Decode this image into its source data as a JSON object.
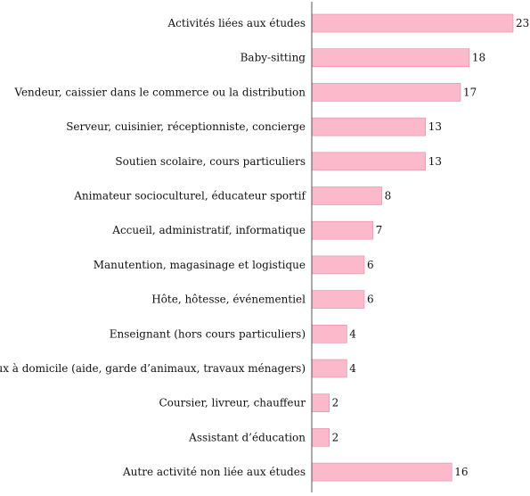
{
  "chart_data": {
    "type": "bar",
    "orientation": "horizontal",
    "categories": [
      "Activités liées aux études",
      "Baby-sitting",
      "Vendeur, caissier dans le commerce ou la distribution",
      "Serveur, cuisinier, réceptionniste, concierge",
      "Soutien scolaire, cours particuliers",
      "Animateur socioculturel, éducateur sportif",
      "Accueil, administratif, informatique",
      "Manutention, magasinage et logistique",
      "Hôte, hôtesse, événementiel",
      "Enseignant (hors cours particuliers)",
      "Travaux à domicile (aide, garde d’animaux, travaux ménagers)",
      "Coursier, livreur, chauffeur",
      "Assistant d’éducation",
      "Autre activité non liée aux études"
    ],
    "values": [
      23,
      18,
      17,
      13,
      13,
      8,
      7,
      6,
      6,
      4,
      4,
      2,
      2,
      16
    ],
    "xlim": [
      0,
      23
    ],
    "grid": false,
    "legend": "none",
    "bar_color": "#fbb9cb",
    "bar_edge_color": "#e68aa6",
    "axis_color": "#555555"
  }
}
